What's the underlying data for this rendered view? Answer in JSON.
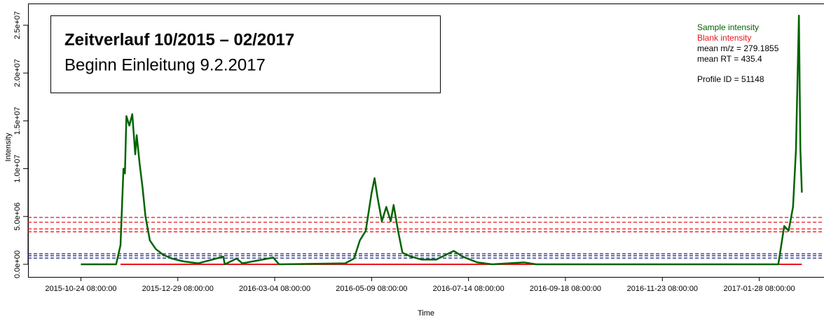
{
  "chart_data": {
    "type": "line",
    "title": "Zeitverlauf 10/2015 – 02/2017",
    "subtitle": "Beginn Einleitung 9.2.2017",
    "x_label": "Time",
    "y_label": "Intensity",
    "annotations": [
      "mean m/z = 279.1855",
      "mean RT = 435.4",
      "Profile ID = 51148"
    ],
    "x": [
      "2015-10-24 08:00:00",
      "2015-11-17 08:00:00",
      "2015-11-20 08:00:00",
      "2015-11-22 08:00:00",
      "2015-11-23 08:00:00",
      "2015-11-24 08:00:00",
      "2015-11-26 08:00:00",
      "2015-11-28 08:00:00",
      "2015-11-30 08:00:00",
      "2015-12-01 08:00:00",
      "2015-12-03 08:00:00",
      "2015-12-05 08:00:00",
      "2015-12-07 08:00:00",
      "2015-12-10 08:00:00",
      "2015-12-14 08:00:00",
      "2015-12-19 08:00:00",
      "2015-12-25 08:00:00",
      "2016-01-02 08:00:00",
      "2016-01-12 08:00:00",
      "2016-01-29 08:00:00",
      "2016-01-30 08:00:00",
      "2016-02-07 08:00:00",
      "2016-02-11 08:00:00",
      "2016-03-03 08:00:00",
      "2016-03-07 08:00:00",
      "2016-04-21 08:00:00",
      "2016-04-27 08:00:00",
      "2016-05-01 08:00:00",
      "2016-05-05 08:00:00",
      "2016-05-09 08:00:00",
      "2016-05-11 08:00:00",
      "2016-05-13 08:00:00",
      "2016-05-16 08:00:00",
      "2016-05-19 08:00:00",
      "2016-05-22 08:00:00",
      "2016-05-24 08:00:00",
      "2016-05-27 08:00:00",
      "2016-05-30 08:00:00",
      "2016-06-05 08:00:00",
      "2016-06-12 08:00:00",
      "2016-06-22 08:00:00",
      "2016-07-04 08:00:00",
      "2016-07-10 08:00:00",
      "2016-07-20 08:00:00",
      "2016-07-30 08:00:00",
      "2016-08-21 08:00:00",
      "2016-08-29 08:00:00",
      "2017-02-10 08:00:00",
      "2017-02-14 08:00:00",
      "2017-02-17 08:00:00",
      "2017-02-20 08:00:00",
      "2017-02-22 08:00:00",
      "2017-02-24 08:00:00",
      "2017-02-25 08:00:00",
      "2017-02-26 08:00:00"
    ],
    "series": [
      {
        "name": "Sample intensity",
        "color": "#006400",
        "width": 2.5,
        "values": [
          0,
          0,
          2000000,
          10000000,
          9500000,
          15500000,
          14500000,
          15700000,
          11500000,
          13500000,
          10500000,
          8000000,
          5000000,
          2500000,
          1600000,
          1000000,
          600000,
          300000,
          100000,
          800000,
          0,
          600000,
          100000,
          700000,
          0,
          100000,
          600000,
          2500000,
          3500000,
          7500000,
          9000000,
          7000000,
          4500000,
          6000000,
          4500000,
          6200000,
          3500000,
          1200000,
          800000,
          500000,
          500000,
          1400000,
          800000,
          200000,
          0,
          200000,
          0,
          0,
          4000000,
          3500000,
          6000000,
          12000000,
          26000000,
          12000000,
          7500000
        ]
      },
      {
        "name": "Blank intensity",
        "color": "#e8141c",
        "width": 2,
        "values": [
          null,
          null,
          0,
          0,
          0,
          0,
          0,
          0,
          0,
          0,
          0,
          0,
          0,
          0,
          0,
          0,
          0,
          0,
          0,
          0,
          0,
          0,
          0,
          0,
          0,
          0,
          0,
          0,
          0,
          0,
          0,
          0,
          0,
          0,
          0,
          0,
          0,
          0,
          0,
          0,
          0,
          0,
          0,
          0,
          0,
          0,
          0,
          0,
          0,
          0,
          0,
          0,
          0,
          0,
          0
        ]
      }
    ],
    "hlines": [
      {
        "value": 4900000,
        "color": "#e8141c"
      },
      {
        "value": 4400000,
        "color": "#e8141c"
      },
      {
        "value": 3700000,
        "color": "#e8141c"
      },
      {
        "value": 3400000,
        "color": "#e8141c"
      },
      {
        "value": 1100000,
        "color": "#1a237e"
      },
      {
        "value": 900000,
        "color": "#1a237e"
      },
      {
        "value": 650000,
        "color": "#1a237e"
      }
    ],
    "xlim": [
      "2015-09-18 08:00:00",
      "2017-03-15 08:00:00"
    ],
    "xticks": [
      "2015-10-24 08:00:00",
      "2015-12-29 08:00:00",
      "2016-03-04 08:00:00",
      "2016-05-09 08:00:00",
      "2016-07-14 08:00:00",
      "2016-09-18 08:00:00",
      "2016-11-23 08:00:00",
      "2017-01-28 08:00:00"
    ],
    "ylim": [
      -1320000,
      27270000
    ],
    "yticks": [
      {
        "value": 0,
        "label": "0.0e+00"
      },
      {
        "value": 5000000,
        "label": "5.0e+06"
      },
      {
        "value": 10000000,
        "label": "1.0e+07"
      },
      {
        "value": 15000000,
        "label": "1.5e+07"
      },
      {
        "value": 20000000,
        "label": "2.0e+07"
      },
      {
        "value": 25000000,
        "label": "2.5e+07"
      }
    ]
  }
}
